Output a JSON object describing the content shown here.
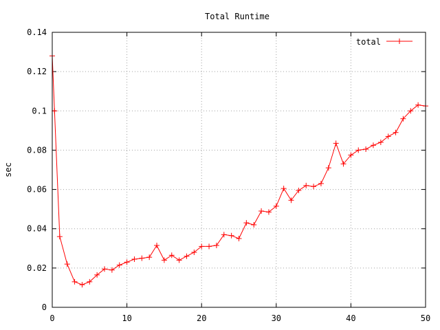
{
  "chart_data": {
    "type": "line",
    "title": "Total Runtime",
    "xlabel": "",
    "ylabel": "sec",
    "xlim": [
      0,
      50
    ],
    "ylim": [
      0,
      0.14
    ],
    "x_ticks": [
      0,
      10,
      20,
      30,
      40,
      50
    ],
    "x_tick_labels": [
      "0",
      "10",
      "20",
      "30",
      "40",
      "50"
    ],
    "y_ticks": [
      0,
      0.02,
      0.04,
      0.06,
      0.08,
      0.1,
      0.12,
      0.14
    ],
    "y_tick_labels": [
      "0",
      "0.02",
      "0.04",
      "0.06",
      "0.08",
      "0.1",
      "0.12",
      "0.14"
    ],
    "grid": true,
    "legend_position": "top-right",
    "series": [
      {
        "name": "total",
        "color": "#ff0000",
        "marker": "plus",
        "x": [
          0,
          0.3,
          1,
          2,
          3,
          4,
          5,
          6,
          7,
          8,
          9,
          10,
          11,
          12,
          13,
          14,
          15,
          16,
          17,
          18,
          19,
          20,
          21,
          22,
          23,
          24,
          25,
          26,
          27,
          28,
          29,
          30,
          31,
          32,
          33,
          34,
          35,
          36,
          37,
          38,
          39,
          40,
          41,
          42,
          43,
          44,
          45,
          46,
          47,
          48,
          49,
          50
        ],
        "values": [
          0.128,
          0.1,
          0.036,
          0.022,
          0.013,
          0.0115,
          0.013,
          0.0165,
          0.0195,
          0.019,
          0.0215,
          0.023,
          0.0245,
          0.025,
          0.0255,
          0.0315,
          0.024,
          0.0265,
          0.024,
          0.026,
          0.028,
          0.031,
          0.031,
          0.0315,
          0.037,
          0.0365,
          0.035,
          0.043,
          0.042,
          0.049,
          0.0485,
          0.0515,
          0.0605,
          0.0545,
          0.0595,
          0.062,
          0.0615,
          0.063,
          0.071,
          0.0835,
          0.073,
          0.0775,
          0.08,
          0.0805,
          0.0825,
          0.084,
          0.087,
          0.089,
          0.096,
          0.1,
          0.103,
          0.1025
        ]
      }
    ]
  }
}
